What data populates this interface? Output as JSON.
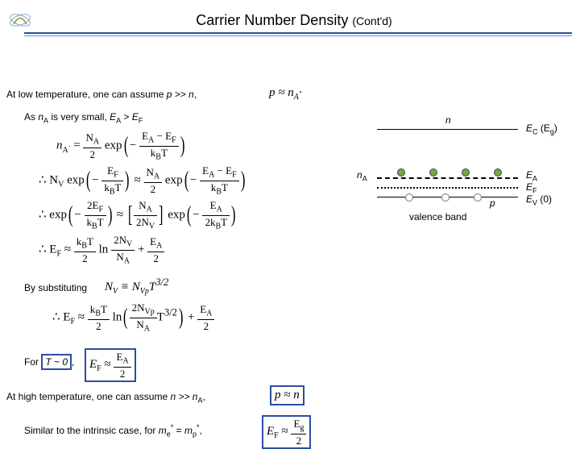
{
  "header": {
    "title_main": "Carrier Number Density",
    "title_sub": "(Cont'd)"
  },
  "lines": {
    "l1_pre": "At low temperature, one can assume ",
    "l1_mid": "p >> n",
    "l1_post": ",",
    "l2_pre": "As ",
    "l2_mid": "n",
    "l2_sub": "A",
    "l2_post": " is very small, ",
    "l2_eq": "E",
    "l2_eqA": "A",
    "l2_gt": " > ",
    "l2_eqF": "F",
    "by_sub": "By substituting",
    "for_t": "For ",
    "t_approx": "T ~ 0",
    "for_t_post": ",",
    "high_t_pre": "At high temperature, one can assume ",
    "high_t_mid": "n >> n",
    "high_t_sub": "A",
    "high_t_post": ",",
    "intrinsic_pre": "Similar to the intrinsic case, for ",
    "me": "m",
    "me_sub": "e",
    "eq_sign": " = ",
    "mp": "m",
    "mp_sub": "p",
    "intrinsic_post": ","
  },
  "diagram": {
    "n_label": "n",
    "nA_pre": "n",
    "nA_sub": "A",
    "p_label": "p",
    "valence": "valence band",
    "EC": "E",
    "EC_sub": "C",
    "EC_paren": "(E",
    "EC_g": "g",
    "EC_close": ")",
    "EA": "E",
    "EA_sub": "A",
    "EF": "E",
    "EF_sub": "F",
    "EV": "E",
    "EV_sub": "V",
    "EV_zero": "(0)",
    "dot_positions_e": [
      55,
      95,
      135,
      175
    ],
    "dot_positions_h": [
      65,
      110,
      150
    ]
  },
  "equations": {
    "eq0": "p ≈ n",
    "eq0_sub": "A",
    "eq0_dot": "·",
    "eq1_pre": "∴ N",
    "eq1_V": "V",
    "eq1_mid": " exp",
    "eq2_pre": "∴ exp",
    "eq3_pre": "∴ E",
    "nv_approx": "N",
    "nv_v": "V",
    "nv_eq": " ≡ N",
    "nv_vp": "Vp",
    "nv_t32": "T",
    "ef_boxed": "E",
    "ef_f": "F",
    "ef_approx": " ≈ ",
    "pn_boxed": "p ≈ n",
    "highT_ef": "E",
    "highT_f": "F",
    "highT_approx": " ≈ ",
    "highT_eg": "E",
    "highT_g": "g"
  },
  "colors": {
    "rule": "#2a4ea0",
    "electron": "#7aa34a",
    "box": "#2a4ea0"
  }
}
